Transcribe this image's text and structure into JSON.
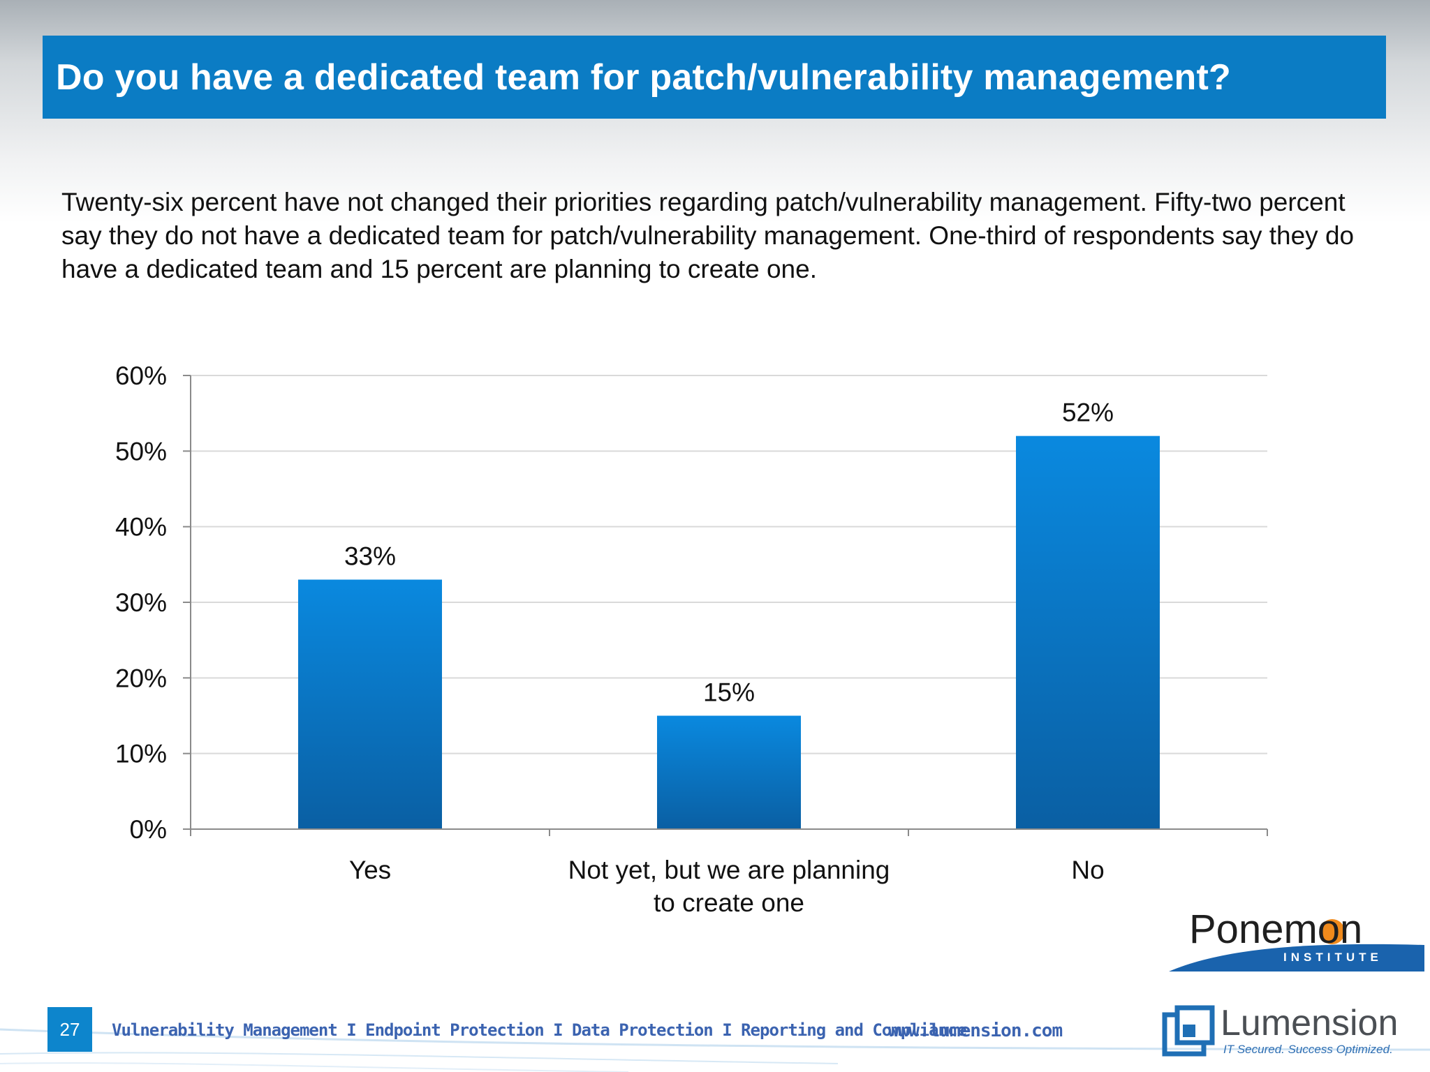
{
  "slide": {
    "title": "Do you have a dedicated team for patch/vulnerability management?",
    "body": "Twenty-six percent have not changed their priorities regarding patch/vulnerability management. Fifty-two percent say they do not have a dedicated team for patch/vulnerability management. One-third of respondents say they do have a dedicated team and 15 percent are planning to create one.",
    "page_number": "27",
    "footer_links": "Vulnerability Management I Endpoint Protection I Data Protection I Reporting and Compliance",
    "footer_url": "www.lumension.com",
    "ponemon_logo_text": "Ponemon",
    "ponemon_logo_sub": "INSTITUTE",
    "lumension_logo_text": "Lumension",
    "lumension_tagline": "IT Secured. Success Optimized."
  },
  "colors": {
    "title_bar": "#0b7cc4",
    "bar_top": "#0a89df",
    "bar_bottom": "#0a5fa3",
    "grid": "#d9d9d9",
    "axis": "#8a8a8a"
  },
  "chart_data": {
    "type": "bar",
    "title": "",
    "xlabel": "",
    "ylabel": "",
    "categories": [
      [
        "Yes"
      ],
      [
        "Not yet, but we are planning",
        "to create one"
      ],
      [
        "No"
      ]
    ],
    "values": [
      33,
      15,
      52
    ],
    "value_labels": [
      "33%",
      "15%",
      "52%"
    ],
    "ylim": [
      0,
      60
    ],
    "yticks": [
      0,
      10,
      20,
      30,
      40,
      50,
      60
    ],
    "ytick_labels": [
      "0%",
      "10%",
      "20%",
      "30%",
      "40%",
      "50%",
      "60%"
    ],
    "grid": true,
    "legend": "none"
  }
}
